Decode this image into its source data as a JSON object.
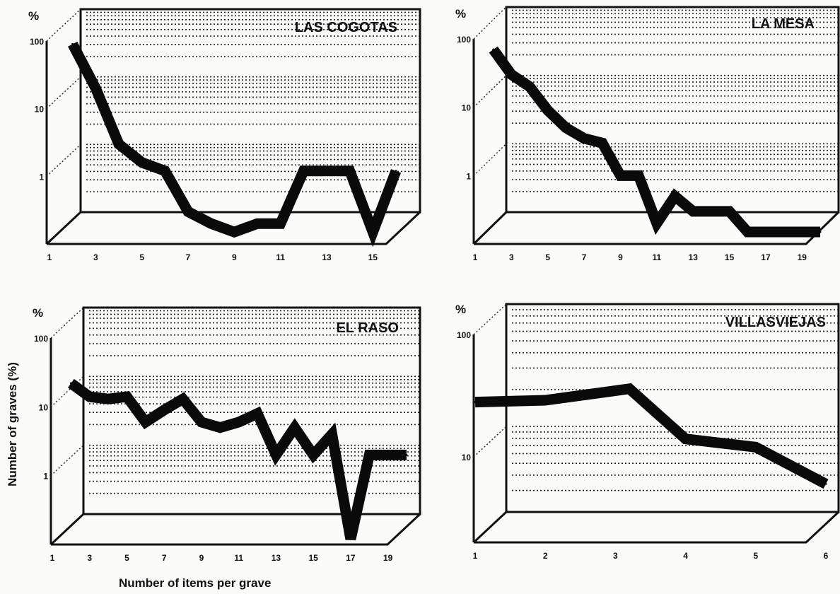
{
  "figure": {
    "ylabel": "Number of graves (%)",
    "xlabel": "Number of items per grave"
  },
  "chart_data": [
    {
      "type": "line",
      "title": "LAS COGOTAS",
      "yunit": "%",
      "yscale": "log",
      "ylim": [
        0.1,
        100
      ],
      "yticks": [
        "1",
        "10",
        "100"
      ],
      "xlim": [
        1,
        16
      ],
      "xticks": [
        "1",
        "3",
        "5",
        "7",
        "9",
        "11",
        "13",
        "15"
      ],
      "grid": true,
      "x": [
        2,
        3,
        4,
        5,
        6,
        7,
        8,
        9,
        10,
        11,
        12,
        13,
        14,
        15,
        16
      ],
      "y": [
        90,
        20,
        3,
        1.6,
        1.2,
        0.3,
        0.2,
        0.15,
        0.2,
        0.2,
        1.2,
        1.2,
        1.2,
        0.15,
        1.2
      ]
    },
    {
      "type": "line",
      "title": "LA MESA",
      "yunit": "%",
      "yscale": "log",
      "ylim": [
        0.1,
        100
      ],
      "yticks": [
        "1",
        "10",
        "100"
      ],
      "xlim": [
        1,
        20
      ],
      "xticks": [
        "1",
        "3",
        "5",
        "7",
        "9",
        "11",
        "13",
        "15",
        "17",
        "19"
      ],
      "grid": true,
      "x": [
        2,
        3,
        4,
        5,
        6,
        7,
        8,
        9,
        10,
        11,
        12,
        13,
        14,
        15,
        16,
        17,
        18,
        19,
        20
      ],
      "y": [
        70,
        30,
        20,
        9,
        5,
        3.5,
        3,
        1,
        1,
        0.2,
        0.5,
        0.3,
        0.3,
        0.3,
        0.15,
        0.15,
        0.15,
        0.15,
        0.15
      ]
    },
    {
      "type": "line",
      "title": "EL RASO",
      "yunit": "%",
      "yscale": "log",
      "ylim": [
        0.1,
        100
      ],
      "yticks": [
        "1",
        "10",
        "100"
      ],
      "xlim": [
        1,
        20
      ],
      "xticks": [
        "1",
        "3",
        "5",
        "7",
        "9",
        "11",
        "13",
        "15",
        "17",
        "19"
      ],
      "grid": true,
      "x": [
        2,
        3,
        4,
        5,
        6,
        7,
        8,
        9,
        10,
        11,
        12,
        13,
        14,
        15,
        16,
        17,
        18,
        19,
        20
      ],
      "y": [
        22,
        14,
        13,
        14,
        6,
        9,
        13,
        6,
        5,
        6,
        8,
        2,
        5,
        2,
        4,
        0.12,
        2,
        2,
        2
      ]
    },
    {
      "type": "line",
      "title": "VILLASVIEJAS",
      "yunit": "%",
      "yscale": "log",
      "ylim": [
        2,
        100
      ],
      "yticks": [
        "10",
        "100"
      ],
      "xlim": [
        1,
        6
      ],
      "xticks": [
        "1",
        "2",
        "3",
        "4",
        "5",
        "6"
      ],
      "grid": true,
      "x": [
        1,
        2,
        3.2,
        4,
        5,
        6
      ],
      "y": [
        28,
        29,
        36,
        14,
        12,
        6
      ]
    }
  ]
}
